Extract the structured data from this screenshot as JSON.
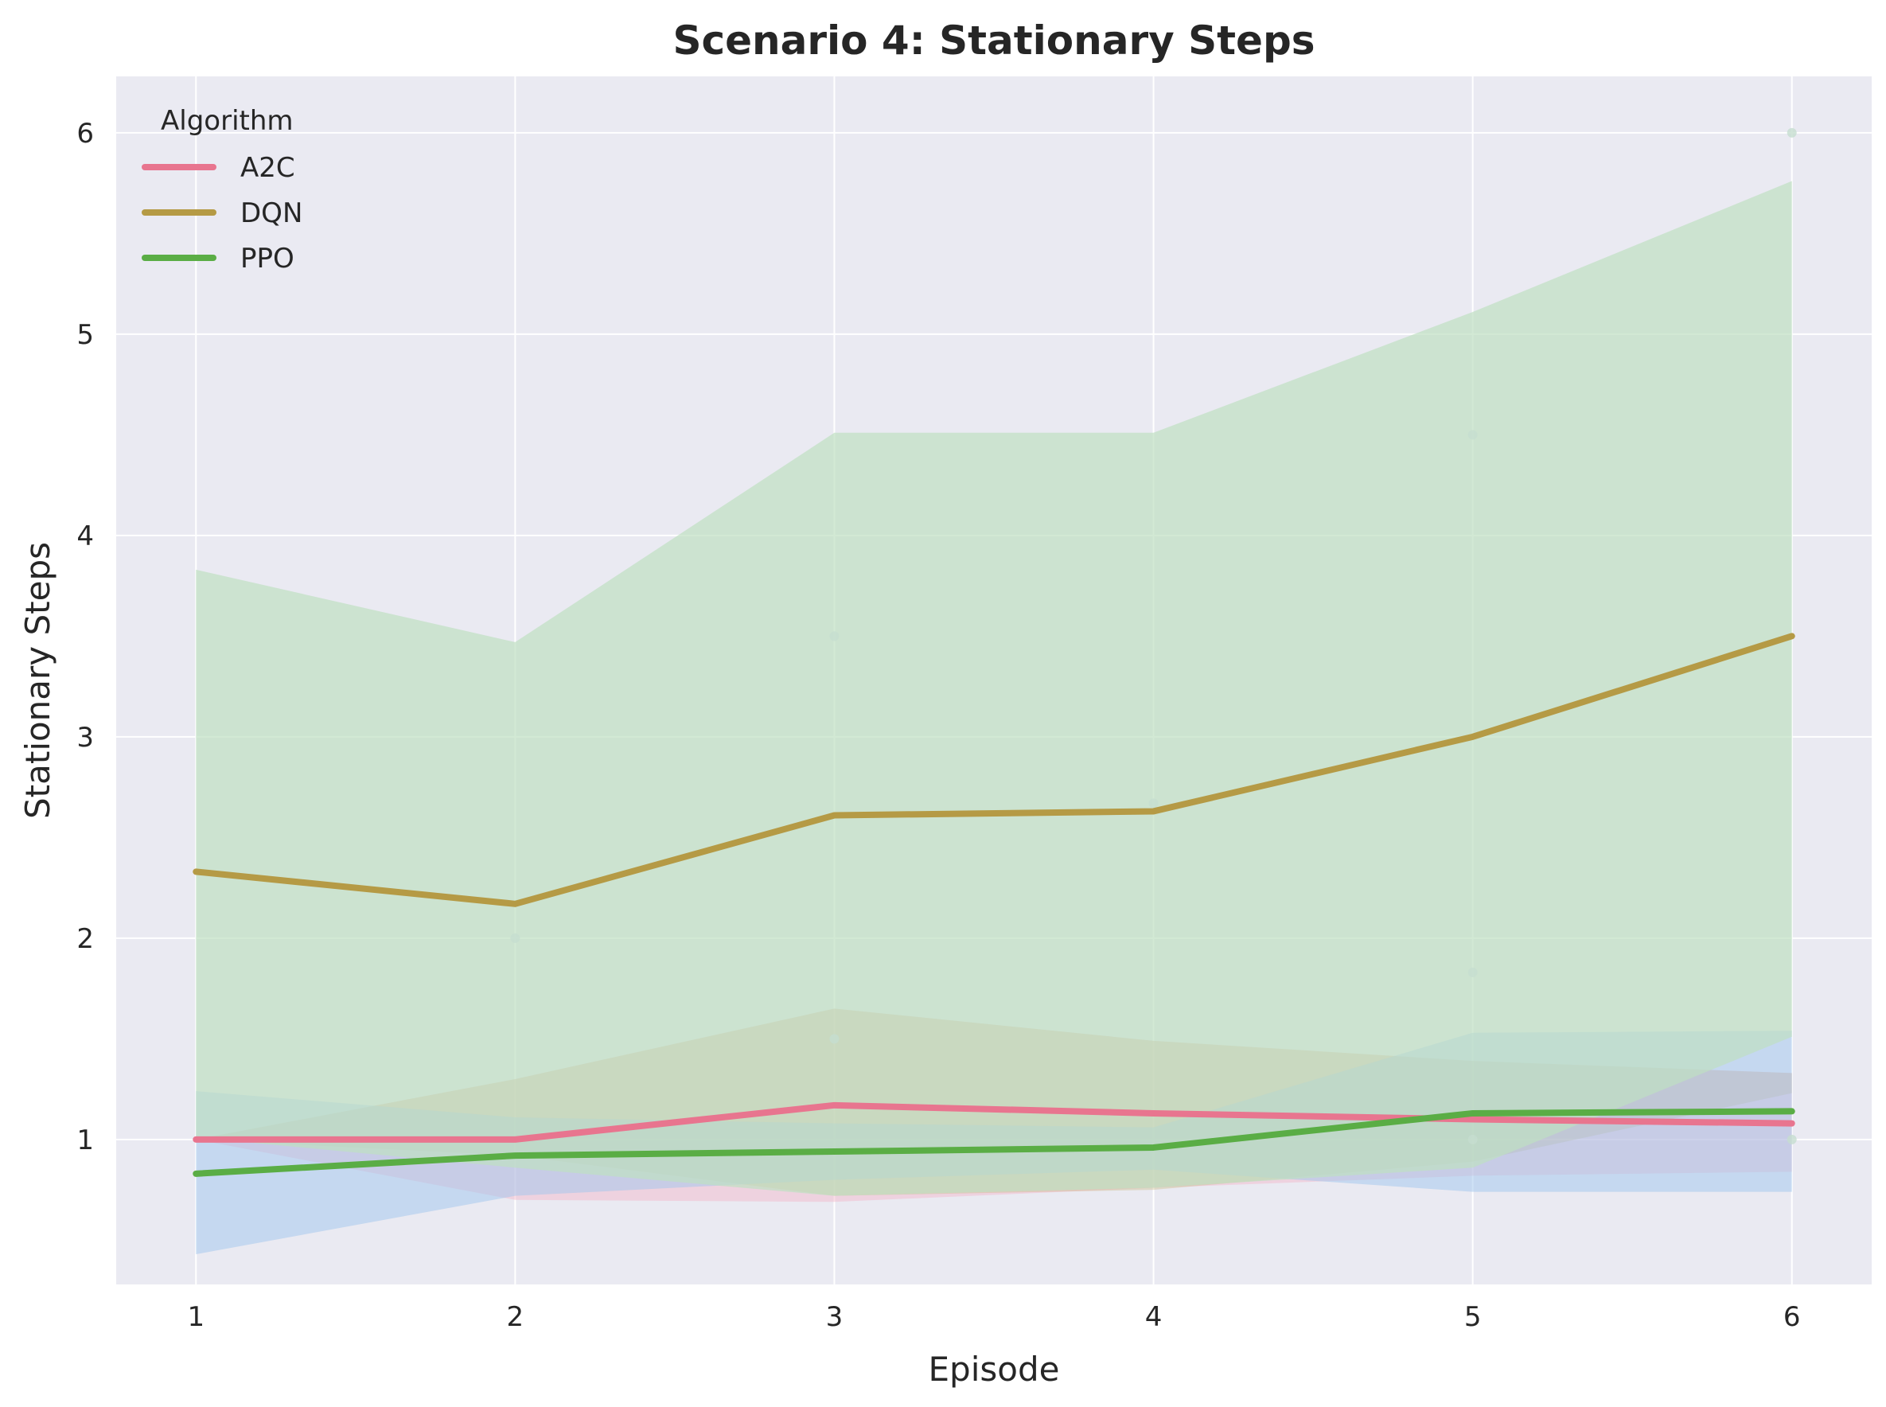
{
  "colors": {
    "background": "#eaeaf2",
    "grid": "#ffffff",
    "text": "#262626"
  },
  "chart_data": {
    "type": "line",
    "title": "Scenario 4: Stationary Steps",
    "xlabel": "Episode",
    "ylabel": "Stationary Steps",
    "x": [
      1,
      2,
      3,
      4,
      5,
      6
    ],
    "xlim": [
      0.75,
      6.25
    ],
    "ylim": [
      0.28,
      6.28
    ],
    "xticks": [
      1,
      2,
      3,
      4,
      5,
      6
    ],
    "yticks": [
      1,
      2,
      3,
      4,
      5,
      6
    ],
    "grid": true,
    "legend": {
      "title": "Algorithm",
      "placement": "top-left"
    },
    "bands": [
      {
        "color": "#f4b6c8",
        "opacity": 0.45,
        "lower": [
          1.0,
          0.7,
          0.69,
          0.76,
          0.82,
          0.84
        ],
        "upper": [
          1.0,
          1.3,
          1.65,
          1.49,
          1.39,
          1.33
        ]
      },
      {
        "color": "#c9b77c",
        "opacity": 0.35,
        "lower": [
          1.0,
          0.92,
          0.72,
          0.75,
          0.89,
          1.23
        ],
        "upper": [
          1.0,
          1.3,
          1.65,
          1.49,
          1.39,
          1.33
        ]
      },
      {
        "color": "#9fc5ee",
        "opacity": 0.5,
        "lower": [
          0.43,
          0.72,
          0.8,
          0.85,
          0.74,
          0.74
        ],
        "upper": [
          1.24,
          1.11,
          1.08,
          1.06,
          1.53,
          1.54
        ]
      },
      {
        "color": "#bfe0c2",
        "opacity": 0.7,
        "lower": [
          1.01,
          0.86,
          0.72,
          0.76,
          0.86,
          1.51
        ],
        "upper": [
          3.83,
          3.47,
          4.51,
          4.51,
          5.11,
          5.76
        ]
      }
    ],
    "points": [
      {
        "x": 2,
        "y": 2.0
      },
      {
        "x": 3,
        "y": 3.5
      },
      {
        "x": 3,
        "y": 1.5
      },
      {
        "x": 4,
        "y": 2.67
      },
      {
        "x": 5,
        "y": 4.5
      },
      {
        "x": 5,
        "y": 1.83
      },
      {
        "x": 5,
        "y": 1.0
      },
      {
        "x": 6,
        "y": 6.0
      },
      {
        "x": 6,
        "y": 1.0
      }
    ],
    "series": [
      {
        "name": "A2C",
        "color": "#e8758f",
        "values": [
          1.0,
          1.0,
          1.17,
          1.13,
          1.1,
          1.08
        ]
      },
      {
        "name": "DQN",
        "color": "#b59a45",
        "values": [
          2.33,
          2.17,
          2.61,
          2.63,
          3.0,
          3.5
        ]
      },
      {
        "name": "PPO",
        "color": "#5aad45",
        "values": [
          0.83,
          0.92,
          0.94,
          0.96,
          1.13,
          1.14
        ]
      }
    ]
  }
}
